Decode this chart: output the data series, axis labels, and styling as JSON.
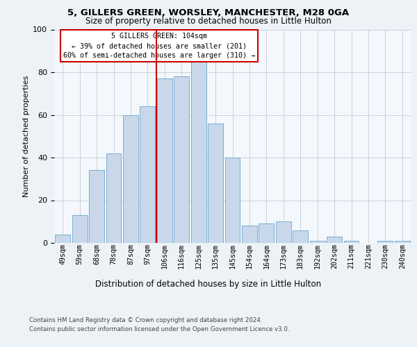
{
  "title1": "5, GILLERS GREEN, WORSLEY, MANCHESTER, M28 0GA",
  "title2": "Size of property relative to detached houses in Little Hulton",
  "xlabel": "Distribution of detached houses by size in Little Hulton",
  "ylabel": "Number of detached properties",
  "categories": [
    "49sqm",
    "59sqm",
    "68sqm",
    "78sqm",
    "87sqm",
    "97sqm",
    "106sqm",
    "116sqm",
    "125sqm",
    "135sqm",
    "145sqm",
    "154sqm",
    "164sqm",
    "173sqm",
    "183sqm",
    "192sqm",
    "202sqm",
    "211sqm",
    "221sqm",
    "230sqm",
    "240sqm"
  ],
  "values": [
    4,
    13,
    34,
    42,
    60,
    64,
    77,
    78,
    85,
    56,
    40,
    8,
    9,
    10,
    6,
    1,
    3,
    1,
    0,
    1,
    1
  ],
  "bar_color": "#c8d8ea",
  "bar_edge_color": "#7aaed0",
  "vline_x": 5.5,
  "vline_color": "#cc0000",
  "annotation_text": "5 GILLERS GREEN: 104sqm\n← 39% of detached houses are smaller (201)\n60% of semi-detached houses are larger (310) →",
  "annotation_box_color": "white",
  "annotation_box_edge": "#cc0000",
  "ylim": [
    0,
    100
  ],
  "yticks": [
    0,
    20,
    40,
    60,
    80,
    100
  ],
  "footer1": "Contains HM Land Registry data © Crown copyright and database right 2024.",
  "footer2": "Contains public sector information licensed under the Open Government Licence v3.0.",
  "bg_color": "#edf2f7",
  "plot_bg_color": "#f4f8fc",
  "grid_color": "#c0ccd8"
}
